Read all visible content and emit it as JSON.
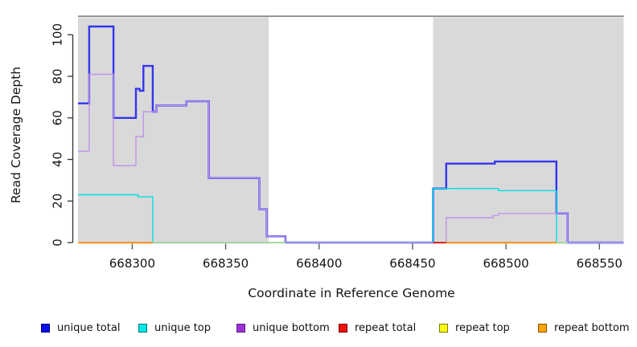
{
  "chart_data": {
    "type": "line",
    "subtype": "step",
    "title": "",
    "xlabel": "Coordinate in Reference Genome",
    "ylabel": "Read Coverage Depth",
    "xlim": [
      668271,
      668563
    ],
    "ylim": [
      0,
      109
    ],
    "grid": false,
    "x_ticks": [
      {
        "value": 668300,
        "label": "668300"
      },
      {
        "value": 668350,
        "label": "668350"
      },
      {
        "value": 668400,
        "label": "668400"
      },
      {
        "value": 668450,
        "label": "668450"
      },
      {
        "value": 668500,
        "label": "668500"
      },
      {
        "value": 668550,
        "label": "668550"
      }
    ],
    "y_ticks": [
      {
        "value": 0,
        "label": "0"
      },
      {
        "value": 20,
        "label": "20"
      },
      {
        "value": 40,
        "label": "40"
      },
      {
        "value": 60,
        "label": "60"
      },
      {
        "value": 80,
        "label": "80"
      },
      {
        "value": 100,
        "label": "100"
      }
    ],
    "shaded_regions": [
      {
        "x0": 668271,
        "x1": 668373,
        "color": "#d9d9d9"
      },
      {
        "x0": 668461,
        "x1": 668563,
        "color": "#d9d9d9"
      }
    ],
    "zero_line_segments": [
      {
        "x0": 668271,
        "x1": 668311,
        "color": "#ff9814",
        "series": "repeat bottom"
      },
      {
        "x0": 668311,
        "x1": 668382,
        "color": "#a4d6a4",
        "series": "repeat top / unique top overlap"
      },
      {
        "x0": 668461,
        "x1": 668468,
        "color": "#e02020",
        "series": "repeat total"
      },
      {
        "x0": 668468,
        "x1": 668527,
        "color": "#ff9814",
        "series": "repeat bottom"
      },
      {
        "x0": 668527,
        "x1": 668533,
        "color": "#a4d6a4",
        "series": "repeat top / unique top overlap"
      }
    ],
    "series": [
      {
        "name": "unique total",
        "color": "#3434f0",
        "width": 2.4,
        "points": [
          [
            668271,
            67
          ],
          [
            668277,
            104
          ],
          [
            668290,
            60
          ],
          [
            668302,
            74
          ],
          [
            668304,
            73
          ],
          [
            668306,
            85
          ],
          [
            668311,
            63
          ],
          [
            668313,
            66
          ],
          [
            668329,
            68
          ],
          [
            668341,
            31
          ],
          [
            668368,
            16
          ],
          [
            668372,
            3
          ],
          [
            668382,
            0
          ],
          [
            668461,
            26
          ],
          [
            668468,
            38
          ],
          [
            668494,
            39
          ],
          [
            668527,
            14
          ],
          [
            668533,
            0
          ],
          [
            668563,
            0
          ]
        ]
      },
      {
        "name": "unique top",
        "color": "#00e1e6",
        "width": 1.4,
        "points": [
          [
            668271,
            23
          ],
          [
            668303,
            22
          ],
          [
            668311,
            0
          ],
          [
            668461,
            26
          ],
          [
            668496,
            25
          ],
          [
            668527,
            0
          ],
          [
            668563,
            0
          ]
        ]
      },
      {
        "name": "unique bottom",
        "color": "#c193ea",
        "width": 1.4,
        "points": [
          [
            668271,
            44
          ],
          [
            668277,
            81
          ],
          [
            668290,
            37
          ],
          [
            668302,
            51
          ],
          [
            668306,
            63
          ],
          [
            668311,
            63
          ],
          [
            668313,
            66
          ],
          [
            668329,
            68
          ],
          [
            668341,
            31
          ],
          [
            668368,
            16
          ],
          [
            668372,
            3
          ],
          [
            668382,
            0
          ],
          [
            668461,
            0
          ],
          [
            668468,
            12
          ],
          [
            668493,
            13
          ],
          [
            668496,
            14
          ],
          [
            668527,
            14
          ],
          [
            668533,
            0
          ],
          [
            668563,
            0
          ]
        ]
      },
      {
        "name": "repeat total",
        "color": "#e02020",
        "width": 2,
        "points": [
          [
            668461,
            0
          ],
          [
            668468,
            0
          ]
        ]
      },
      {
        "name": "repeat top",
        "color": "#f5f500",
        "width": 2,
        "points": []
      },
      {
        "name": "repeat bottom",
        "color": "#ff9814",
        "width": 2,
        "points": [
          [
            668271,
            0
          ],
          [
            668311,
            0
          ],
          [
            668468,
            0
          ],
          [
            668527,
            0
          ]
        ]
      }
    ]
  },
  "legend": {
    "items": [
      {
        "label": "unique total",
        "fill": "#0d0de8",
        "border": "#000080"
      },
      {
        "label": "unique top",
        "fill": "#00e6e6",
        "border": "#007a7a"
      },
      {
        "label": "unique bottom",
        "fill": "#9a33d6",
        "border": "#5c1e86"
      },
      {
        "label": "repeat total",
        "fill": "#ee1111",
        "border": "#800000"
      },
      {
        "label": "repeat top",
        "fill": "#fdfd0d",
        "border": "#7a7a00"
      },
      {
        "label": "repeat bottom",
        "fill": "#ffa40d",
        "border": "#8a5400"
      }
    ]
  }
}
